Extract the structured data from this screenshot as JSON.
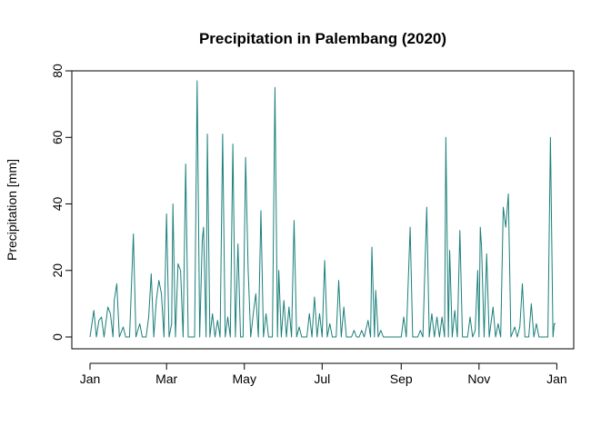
{
  "chart_data": {
    "type": "line",
    "title": "Precipitation in Palembang (2020)",
    "xlabel": "",
    "ylabel": "Precipitation [mm]",
    "ylim": [
      0,
      80
    ],
    "yticks": [
      0,
      20,
      40,
      60,
      80
    ],
    "xlim": [
      "2020-01-01",
      "2020-12-31"
    ],
    "xticks": [
      {
        "date": "2020-01-01",
        "label": "Jan"
      },
      {
        "date": "2020-03-01",
        "label": "Mar"
      },
      {
        "date": "2020-05-01",
        "label": "May"
      },
      {
        "date": "2020-07-01",
        "label": "Jul"
      },
      {
        "date": "2020-09-01",
        "label": "Sep"
      },
      {
        "date": "2020-11-01",
        "label": "Nov"
      },
      {
        "date": "2021-01-01",
        "label": "Jan"
      }
    ],
    "grid": false,
    "color": "#1a7f7a",
    "series": [
      {
        "points": [
          [
            "2020-01-01",
            0
          ],
          [
            "2020-01-04",
            8
          ],
          [
            "2020-01-06",
            0
          ],
          [
            "2020-01-08",
            5
          ],
          [
            "2020-01-10",
            6
          ],
          [
            "2020-01-12",
            0
          ],
          [
            "2020-01-15",
            9
          ],
          [
            "2020-01-17",
            7
          ],
          [
            "2020-01-19",
            0
          ],
          [
            "2020-01-20",
            11
          ],
          [
            "2020-01-22",
            16
          ],
          [
            "2020-01-24",
            0
          ],
          [
            "2020-01-27",
            3
          ],
          [
            "2020-01-29",
            0
          ],
          [
            "2020-02-01",
            0
          ],
          [
            "2020-02-04",
            31
          ],
          [
            "2020-02-06",
            0
          ],
          [
            "2020-02-09",
            4
          ],
          [
            "2020-02-11",
            0
          ],
          [
            "2020-02-14",
            0
          ],
          [
            "2020-02-16",
            6
          ],
          [
            "2020-02-18",
            19
          ],
          [
            "2020-02-20",
            0
          ],
          [
            "2020-02-22",
            11
          ],
          [
            "2020-02-24",
            17
          ],
          [
            "2020-02-26",
            13
          ],
          [
            "2020-02-28",
            0
          ],
          [
            "2020-03-01",
            37
          ],
          [
            "2020-03-03",
            0
          ],
          [
            "2020-03-05",
            4
          ],
          [
            "2020-03-06",
            40
          ],
          [
            "2020-03-08",
            0
          ],
          [
            "2020-03-10",
            22
          ],
          [
            "2020-03-12",
            20
          ],
          [
            "2020-03-14",
            0
          ],
          [
            "2020-03-16",
            52
          ],
          [
            "2020-03-18",
            0
          ],
          [
            "2020-03-21",
            0
          ],
          [
            "2020-03-23",
            0
          ],
          [
            "2020-03-25",
            77
          ],
          [
            "2020-03-27",
            0
          ],
          [
            "2020-03-29",
            29
          ],
          [
            "2020-03-30",
            33
          ],
          [
            "2020-04-01",
            0
          ],
          [
            "2020-04-02",
            61
          ],
          [
            "2020-04-04",
            0
          ],
          [
            "2020-04-06",
            7
          ],
          [
            "2020-04-08",
            0
          ],
          [
            "2020-04-10",
            5
          ],
          [
            "2020-04-12",
            0
          ],
          [
            "2020-04-14",
            61
          ],
          [
            "2020-04-16",
            0
          ],
          [
            "2020-04-18",
            6
          ],
          [
            "2020-04-20",
            0
          ],
          [
            "2020-04-22",
            58
          ],
          [
            "2020-04-24",
            0
          ],
          [
            "2020-04-26",
            28
          ],
          [
            "2020-04-28",
            0
          ],
          [
            "2020-04-30",
            0
          ],
          [
            "2020-05-02",
            54
          ],
          [
            "2020-05-04",
            20
          ],
          [
            "2020-05-06",
            0
          ],
          [
            "2020-05-08",
            7
          ],
          [
            "2020-05-10",
            13
          ],
          [
            "2020-05-12",
            0
          ],
          [
            "2020-05-14",
            38
          ],
          [
            "2020-05-16",
            0
          ],
          [
            "2020-05-18",
            7
          ],
          [
            "2020-05-20",
            0
          ],
          [
            "2020-05-23",
            0
          ],
          [
            "2020-05-25",
            75
          ],
          [
            "2020-05-27",
            0
          ],
          [
            "2020-05-28",
            20
          ],
          [
            "2020-05-30",
            0
          ],
          [
            "2020-06-01",
            11
          ],
          [
            "2020-06-03",
            0
          ],
          [
            "2020-06-05",
            9
          ],
          [
            "2020-06-07",
            0
          ],
          [
            "2020-06-09",
            35
          ],
          [
            "2020-06-11",
            0
          ],
          [
            "2020-06-13",
            3
          ],
          [
            "2020-06-15",
            0
          ],
          [
            "2020-06-19",
            0
          ],
          [
            "2020-06-21",
            7
          ],
          [
            "2020-06-23",
            0
          ],
          [
            "2020-06-25",
            12
          ],
          [
            "2020-06-27",
            0
          ],
          [
            "2020-06-29",
            7
          ],
          [
            "2020-07-01",
            0
          ],
          [
            "2020-07-03",
            23
          ],
          [
            "2020-07-05",
            0
          ],
          [
            "2020-07-07",
            4
          ],
          [
            "2020-07-09",
            0
          ],
          [
            "2020-07-12",
            0
          ],
          [
            "2020-07-14",
            17
          ],
          [
            "2020-07-16",
            0
          ],
          [
            "2020-07-18",
            9
          ],
          [
            "2020-07-20",
            0
          ],
          [
            "2020-07-24",
            0
          ],
          [
            "2020-07-26",
            2
          ],
          [
            "2020-07-28",
            0
          ],
          [
            "2020-07-30",
            0
          ],
          [
            "2020-08-01",
            2
          ],
          [
            "2020-08-03",
            0
          ],
          [
            "2020-08-06",
            5
          ],
          [
            "2020-08-08",
            0
          ],
          [
            "2020-08-09",
            27
          ],
          [
            "2020-08-11",
            0
          ],
          [
            "2020-08-12",
            14
          ],
          [
            "2020-08-14",
            0
          ],
          [
            "2020-08-16",
            2
          ],
          [
            "2020-08-18",
            0
          ],
          [
            "2020-08-22",
            0
          ],
          [
            "2020-08-28",
            0
          ],
          [
            "2020-09-01",
            0
          ],
          [
            "2020-09-03",
            6
          ],
          [
            "2020-09-05",
            0
          ],
          [
            "2020-09-08",
            33
          ],
          [
            "2020-09-10",
            0
          ],
          [
            "2020-09-14",
            0
          ],
          [
            "2020-09-16",
            2
          ],
          [
            "2020-09-18",
            0
          ],
          [
            "2020-09-21",
            39
          ],
          [
            "2020-09-23",
            0
          ],
          [
            "2020-09-25",
            7
          ],
          [
            "2020-09-27",
            0
          ],
          [
            "2020-09-29",
            6
          ],
          [
            "2020-10-01",
            0
          ],
          [
            "2020-10-03",
            6
          ],
          [
            "2020-10-05",
            0
          ],
          [
            "2020-10-06",
            60
          ],
          [
            "2020-10-08",
            0
          ],
          [
            "2020-10-09",
            26
          ],
          [
            "2020-10-11",
            0
          ],
          [
            "2020-10-13",
            8
          ],
          [
            "2020-10-15",
            0
          ],
          [
            "2020-10-17",
            32
          ],
          [
            "2020-10-19",
            0
          ],
          [
            "2020-10-23",
            0
          ],
          [
            "2020-10-25",
            6
          ],
          [
            "2020-10-27",
            0
          ],
          [
            "2020-10-29",
            2
          ],
          [
            "2020-10-31",
            20
          ],
          [
            "2020-11-01",
            0
          ],
          [
            "2020-11-02",
            33
          ],
          [
            "2020-11-03",
            27
          ],
          [
            "2020-11-05",
            0
          ],
          [
            "2020-11-07",
            25
          ],
          [
            "2020-11-09",
            0
          ],
          [
            "2020-11-12",
            9
          ],
          [
            "2020-11-14",
            0
          ],
          [
            "2020-11-16",
            4
          ],
          [
            "2020-11-18",
            0
          ],
          [
            "2020-11-20",
            39
          ],
          [
            "2020-11-22",
            33
          ],
          [
            "2020-11-24",
            43
          ],
          [
            "2020-11-26",
            0
          ],
          [
            "2020-11-29",
            3
          ],
          [
            "2020-12-01",
            0
          ],
          [
            "2020-12-03",
            3
          ],
          [
            "2020-12-05",
            16
          ],
          [
            "2020-12-07",
            0
          ],
          [
            "2020-12-10",
            0
          ],
          [
            "2020-12-12",
            10
          ],
          [
            "2020-12-14",
            0
          ],
          [
            "2020-12-16",
            4
          ],
          [
            "2020-12-18",
            0
          ],
          [
            "2020-12-22",
            0
          ],
          [
            "2020-12-25",
            0
          ],
          [
            "2020-12-27",
            60
          ],
          [
            "2020-12-29",
            0
          ],
          [
            "2020-12-30",
            4
          ],
          [
            "2020-12-31",
            4
          ]
        ]
      }
    ]
  }
}
